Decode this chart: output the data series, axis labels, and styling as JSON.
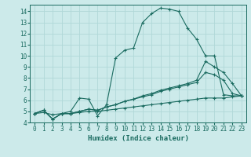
{
  "xlabel": "Humidex (Indice chaleur)",
  "bg_color": "#cceaea",
  "grid_color": "#b0d8d8",
  "line_color": "#1a6b60",
  "xlim": [
    -0.5,
    23.5
  ],
  "ylim": [
    4,
    14.6
  ],
  "xticks": [
    0,
    1,
    2,
    3,
    4,
    5,
    6,
    7,
    8,
    9,
    10,
    11,
    12,
    13,
    14,
    15,
    16,
    17,
    18,
    19,
    20,
    21,
    22,
    23
  ],
  "yticks": [
    4,
    5,
    6,
    7,
    8,
    9,
    10,
    11,
    12,
    13,
    14
  ],
  "series": [
    {
      "x": [
        0,
        1,
        2,
        3,
        4,
        5,
        6,
        7,
        8,
        9,
        10,
        11,
        12,
        13,
        14,
        15,
        16,
        17,
        18,
        19,
        20,
        21,
        22,
        23
      ],
      "y": [
        4.8,
        5.1,
        4.3,
        4.8,
        5.0,
        6.2,
        6.1,
        4.6,
        5.6,
        9.8,
        10.5,
        10.7,
        13.0,
        13.8,
        14.3,
        14.2,
        14.0,
        12.5,
        11.5,
        10.0,
        10.0,
        6.5,
        6.4,
        6.4
      ]
    },
    {
      "x": [
        0,
        1,
        2,
        3,
        4,
        5,
        6,
        7,
        8,
        9,
        10,
        11,
        12,
        13,
        14,
        15,
        16,
        17,
        18,
        19,
        20,
        21,
        22,
        23
      ],
      "y": [
        4.8,
        5.1,
        4.3,
        4.8,
        4.8,
        5.0,
        5.2,
        5.1,
        5.4,
        5.6,
        5.9,
        6.1,
        6.4,
        6.6,
        6.9,
        7.1,
        7.3,
        7.5,
        7.8,
        9.5,
        9.0,
        8.5,
        7.5,
        6.4
      ]
    },
    {
      "x": [
        0,
        1,
        2,
        3,
        4,
        5,
        6,
        7,
        8,
        9,
        10,
        11,
        12,
        13,
        14,
        15,
        16,
        17,
        18,
        19,
        20,
        21,
        22,
        23
      ],
      "y": [
        4.8,
        5.1,
        4.3,
        4.8,
        4.8,
        5.0,
        5.2,
        5.1,
        5.4,
        5.6,
        5.9,
        6.1,
        6.3,
        6.5,
        6.8,
        7.0,
        7.2,
        7.4,
        7.6,
        8.5,
        8.3,
        7.8,
        6.6,
        6.4
      ]
    },
    {
      "x": [
        0,
        1,
        2,
        3,
        4,
        5,
        6,
        7,
        8,
        9,
        10,
        11,
        12,
        13,
        14,
        15,
        16,
        17,
        18,
        19,
        20,
        21,
        22,
        23
      ],
      "y": [
        4.8,
        4.9,
        4.7,
        4.8,
        4.8,
        4.9,
        5.0,
        5.0,
        5.1,
        5.2,
        5.3,
        5.4,
        5.5,
        5.6,
        5.7,
        5.8,
        5.9,
        6.0,
        6.1,
        6.2,
        6.2,
        6.2,
        6.3,
        6.4
      ]
    }
  ]
}
